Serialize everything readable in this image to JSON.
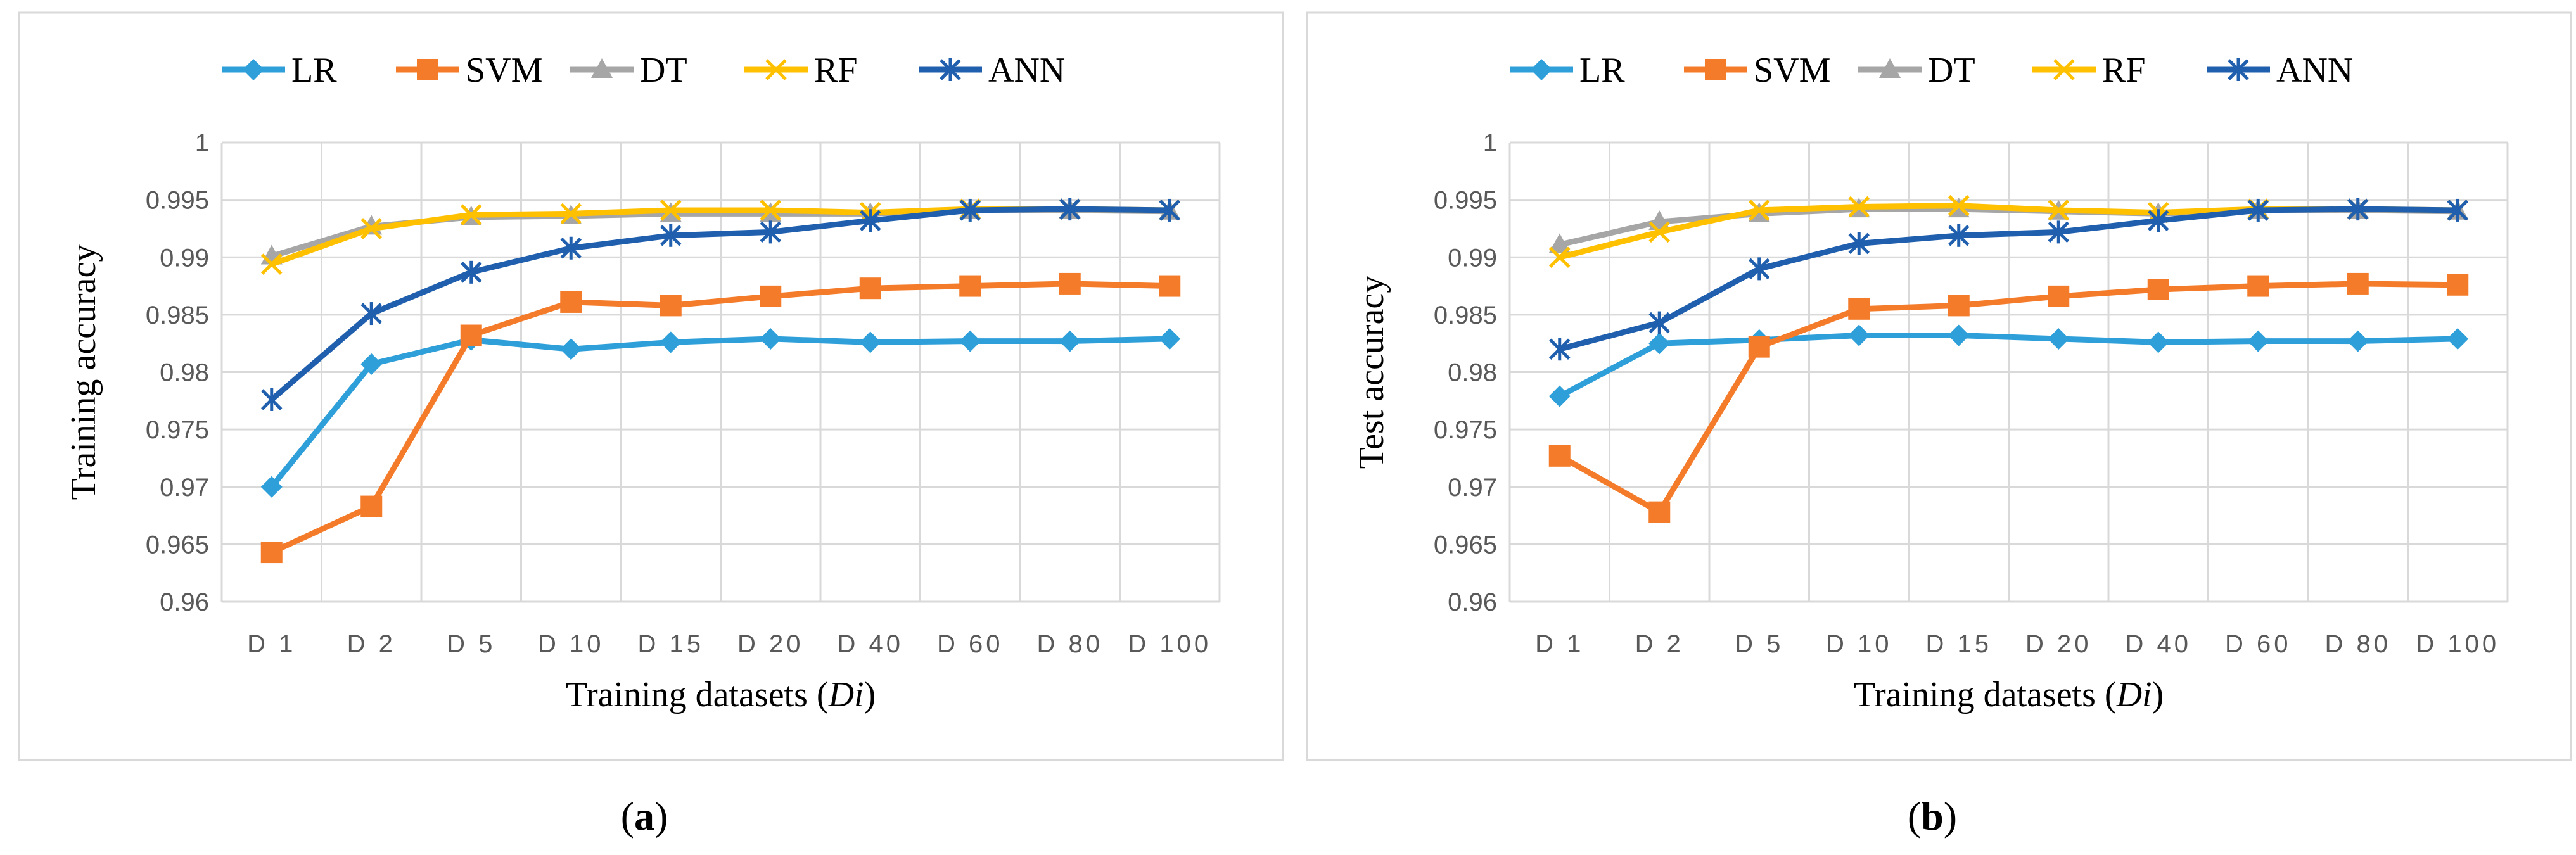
{
  "chart_data": [
    {
      "type": "line",
      "panel_label": "a",
      "xlabel": "Training datasets (Di)",
      "xlabel_main": "Training datasets (",
      "xlabel_var": "Di",
      "xlabel_end": ")",
      "ylabel": "Training accuracy",
      "ylim": [
        0.96,
        1.0
      ],
      "yticks": [
        "0.96",
        "0.965",
        "0.97",
        "0.975",
        "0.98",
        "0.985",
        "0.99",
        "0.995",
        "1"
      ],
      "categories": [
        "D1",
        "D2",
        "D5",
        "D10",
        "D15",
        "D20",
        "D40",
        "D60",
        "D80",
        "D100"
      ],
      "grid": true,
      "legend_position": "top",
      "series": [
        {
          "name": "LR",
          "values": [
            0.97,
            0.9807,
            0.9828,
            0.982,
            0.9826,
            0.9829,
            0.9826,
            0.9827,
            0.9827,
            0.9829
          ]
        },
        {
          "name": "SVM",
          "values": [
            0.9643,
            0.9683,
            0.9832,
            0.9861,
            0.9858,
            0.9866,
            0.9873,
            0.9875,
            0.9877,
            0.9875
          ]
        },
        {
          "name": "DT",
          "values": [
            0.9901,
            0.9927,
            0.9935,
            0.9936,
            0.9938,
            0.9938,
            0.9938,
            0.9941,
            0.9941,
            0.994
          ]
        },
        {
          "name": "RF",
          "values": [
            0.9894,
            0.9925,
            0.9937,
            0.9938,
            0.9941,
            0.9941,
            0.9939,
            0.9942,
            0.9942,
            0.9941
          ]
        },
        {
          "name": "ANN",
          "values": [
            0.9776,
            0.9851,
            0.9887,
            0.9908,
            0.9919,
            0.9922,
            0.9932,
            0.9941,
            0.9942,
            0.9941
          ]
        }
      ]
    },
    {
      "type": "line",
      "panel_label": "b",
      "xlabel": "Training datasets (Di)",
      "xlabel_main": "Training datasets (",
      "xlabel_var": "Di",
      "xlabel_end": ")",
      "ylabel": "Test accuracy",
      "ylim": [
        0.96,
        1.0
      ],
      "yticks": [
        "0.96",
        "0.965",
        "0.97",
        "0.975",
        "0.98",
        "0.985",
        "0.99",
        "0.995",
        "1"
      ],
      "categories": [
        "D1",
        "D2",
        "D5",
        "D10",
        "D15",
        "D20",
        "D40",
        "D60",
        "D80",
        "D100"
      ],
      "grid": true,
      "legend_position": "top",
      "series": [
        {
          "name": "LR",
          "values": [
            0.9779,
            0.9825,
            0.9828,
            0.9832,
            0.9832,
            0.9829,
            0.9826,
            0.9827,
            0.9827,
            0.9829
          ]
        },
        {
          "name": "SVM",
          "values": [
            0.9727,
            0.9678,
            0.9822,
            0.9855,
            0.9858,
            0.9866,
            0.9872,
            0.9875,
            0.9877,
            0.9876
          ]
        },
        {
          "name": "DT",
          "values": [
            0.9911,
            0.9931,
            0.9938,
            0.9942,
            0.9942,
            0.994,
            0.9938,
            0.9941,
            0.9941,
            0.994
          ]
        },
        {
          "name": "RF",
          "values": [
            0.99,
            0.9922,
            0.9941,
            0.9944,
            0.9945,
            0.9941,
            0.9939,
            0.9942,
            0.9942,
            0.9941
          ]
        },
        {
          "name": "ANN",
          "values": [
            0.982,
            0.9843,
            0.989,
            0.9912,
            0.9919,
            0.9922,
            0.9932,
            0.9941,
            0.9942,
            0.9941
          ]
        }
      ]
    }
  ],
  "series_style": {
    "LR": {
      "color": "#2e9fd9",
      "marker": "diamond-icon"
    },
    "SVM": {
      "color": "#f47b2a",
      "marker": "square-icon"
    },
    "DT": {
      "color": "#a6a6a6",
      "marker": "triangle-icon"
    },
    "RF": {
      "color": "#ffc000",
      "marker": "x-icon"
    },
    "ANN": {
      "color": "#1f5fae",
      "marker": "asterisk-icon"
    }
  }
}
